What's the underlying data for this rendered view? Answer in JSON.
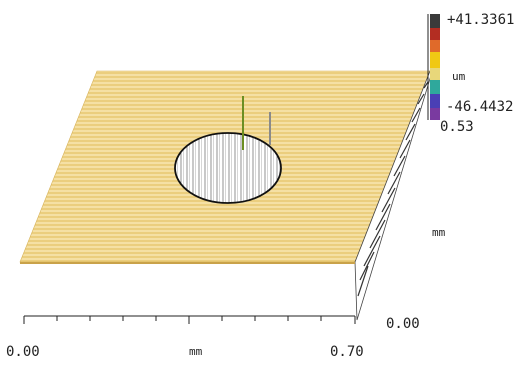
{
  "colorbar": {
    "max_label": "+41.3361",
    "unit_label": "um",
    "min_label": "-46.4432",
    "colors": [
      "#3a3a3a",
      "#c0392b",
      "#e88a2a",
      "#f0c814",
      "#2fa89c",
      "#4a3fb5",
      "#7a3aa0"
    ]
  },
  "axes": {
    "x_start": "0.00",
    "x_unit": "mm",
    "x_end": "0.70",
    "y_start": "0.00",
    "y_unit": "mm",
    "y_end": "0.53"
  },
  "surface": {
    "fill_color": "#f2d58a",
    "stripe_color": "#e6c46a",
    "hole_shape": "ellipse",
    "spike_colors": [
      "#6b8e23",
      "#8a8a8a"
    ]
  }
}
